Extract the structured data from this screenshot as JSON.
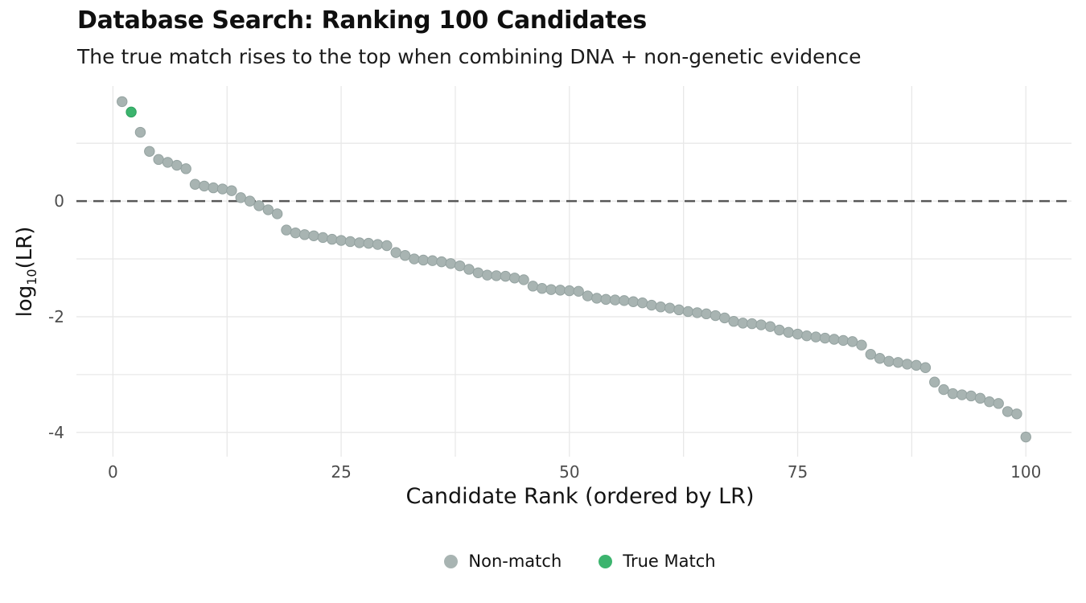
{
  "chart_data": {
    "type": "scatter",
    "title": "Database Search: Ranking 100 Candidates",
    "subtitle": "The true match rises to the top when combining DNA + non-genetic evidence",
    "xlabel": "Candidate Rank (ordered by LR)",
    "ylabel": "log10(LR)",
    "ylabel_parts": {
      "base": "log",
      "sub": "10",
      "rest": "(LR)"
    },
    "xlim": [
      -4,
      105
    ],
    "ylim": [
      -4.42,
      1.99
    ],
    "xticks": [
      {
        "value": 0,
        "label": "0"
      },
      {
        "value": 25,
        "label": "25"
      },
      {
        "value": 50,
        "label": "50"
      },
      {
        "value": 75,
        "label": "75"
      },
      {
        "value": 100,
        "label": "100"
      }
    ],
    "xticks_minor": [
      12.5,
      37.5,
      62.5,
      87.5
    ],
    "yticks": [
      {
        "value": 0,
        "label": "0"
      },
      {
        "value": -2,
        "label": "-2"
      },
      {
        "value": -4,
        "label": "-4"
      }
    ],
    "yticks_minor": [
      1,
      -1,
      -3
    ],
    "grid": true,
    "grid_color": "#e8e8e8",
    "reference_line": {
      "y": 0,
      "color": "#575757",
      "width": 2.6,
      "dash": "13 8"
    },
    "marker_radius": 6.2,
    "tick_label_color": "#4d4d4d",
    "tick_label_size": 20,
    "legend": {
      "position": "bottom-center",
      "items": [
        {
          "label": "Non-match",
          "color": "#a8b4b2",
          "stroke": "#94a2a0"
        },
        {
          "label": "True Match",
          "color": "#3cb46e",
          "stroke": "#2da05c"
        }
      ]
    },
    "series": [
      {
        "name": "Non-match",
        "color": "#a8b4b2",
        "stroke": "#94a2a0",
        "points": [
          [
            1,
            1.72
          ],
          [
            3,
            1.19
          ],
          [
            4,
            0.86
          ],
          [
            5,
            0.72
          ],
          [
            6,
            0.67
          ],
          [
            7,
            0.62
          ],
          [
            8,
            0.56
          ],
          [
            9,
            0.29
          ],
          [
            10,
            0.26
          ],
          [
            11,
            0.23
          ],
          [
            12,
            0.21
          ],
          [
            13,
            0.18
          ],
          [
            14,
            0.06
          ],
          [
            15,
            0.0
          ],
          [
            16,
            -0.08
          ],
          [
            17,
            -0.15
          ],
          [
            18,
            -0.22
          ],
          [
            19,
            -0.5
          ],
          [
            20,
            -0.55
          ],
          [
            21,
            -0.58
          ],
          [
            22,
            -0.6
          ],
          [
            23,
            -0.63
          ],
          [
            24,
            -0.66
          ],
          [
            25,
            -0.68
          ],
          [
            26,
            -0.7
          ],
          [
            27,
            -0.72
          ],
          [
            28,
            -0.73
          ],
          [
            29,
            -0.75
          ],
          [
            30,
            -0.77
          ],
          [
            31,
            -0.89
          ],
          [
            32,
            -0.94
          ],
          [
            33,
            -1.0
          ],
          [
            34,
            -1.02
          ],
          [
            35,
            -1.03
          ],
          [
            36,
            -1.05
          ],
          [
            37,
            -1.08
          ],
          [
            38,
            -1.12
          ],
          [
            39,
            -1.18
          ],
          [
            40,
            -1.24
          ],
          [
            41,
            -1.28
          ],
          [
            42,
            -1.29
          ],
          [
            43,
            -1.3
          ],
          [
            44,
            -1.33
          ],
          [
            45,
            -1.36
          ],
          [
            46,
            -1.47
          ],
          [
            47,
            -1.51
          ],
          [
            48,
            -1.53
          ],
          [
            49,
            -1.54
          ],
          [
            50,
            -1.55
          ],
          [
            51,
            -1.56
          ],
          [
            52,
            -1.64
          ],
          [
            53,
            -1.68
          ],
          [
            54,
            -1.7
          ],
          [
            55,
            -1.71
          ],
          [
            56,
            -1.72
          ],
          [
            57,
            -1.74
          ],
          [
            58,
            -1.76
          ],
          [
            59,
            -1.8
          ],
          [
            60,
            -1.83
          ],
          [
            61,
            -1.85
          ],
          [
            62,
            -1.88
          ],
          [
            63,
            -1.91
          ],
          [
            64,
            -1.93
          ],
          [
            65,
            -1.95
          ],
          [
            66,
            -1.98
          ],
          [
            67,
            -2.02
          ],
          [
            68,
            -2.08
          ],
          [
            69,
            -2.11
          ],
          [
            70,
            -2.12
          ],
          [
            71,
            -2.14
          ],
          [
            72,
            -2.17
          ],
          [
            73,
            -2.23
          ],
          [
            74,
            -2.27
          ],
          [
            75,
            -2.3
          ],
          [
            76,
            -2.33
          ],
          [
            77,
            -2.35
          ],
          [
            78,
            -2.37
          ],
          [
            79,
            -2.39
          ],
          [
            80,
            -2.41
          ],
          [
            81,
            -2.43
          ],
          [
            82,
            -2.49
          ],
          [
            83,
            -2.65
          ],
          [
            84,
            -2.72
          ],
          [
            85,
            -2.77
          ],
          [
            86,
            -2.79
          ],
          [
            87,
            -2.82
          ],
          [
            88,
            -2.84
          ],
          [
            89,
            -2.88
          ],
          [
            90,
            -3.13
          ],
          [
            91,
            -3.26
          ],
          [
            92,
            -3.33
          ],
          [
            93,
            -3.35
          ],
          [
            94,
            -3.37
          ],
          [
            95,
            -3.41
          ],
          [
            96,
            -3.47
          ],
          [
            97,
            -3.5
          ],
          [
            98,
            -3.64
          ],
          [
            99,
            -3.68
          ],
          [
            100,
            -4.08
          ]
        ]
      },
      {
        "name": "True Match",
        "color": "#3cb46e",
        "stroke": "#2da05c",
        "points": [
          [
            2,
            1.54
          ]
        ]
      }
    ]
  }
}
